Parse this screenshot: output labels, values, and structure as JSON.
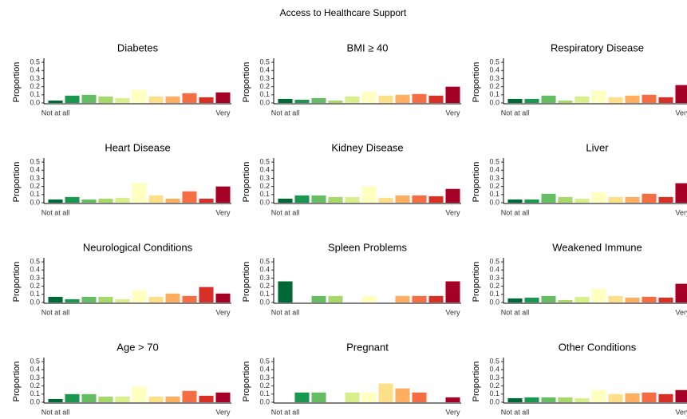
{
  "title": "Access to Healthcare Support",
  "chart_data": [
    {
      "type": "bar",
      "title": "Diabetes",
      "ylabel": "Proportion",
      "categories": [
        "Not at all",
        null,
        null,
        null,
        null,
        null,
        null,
        null,
        null,
        null,
        "Very"
      ],
      "values": [
        0.03,
        0.09,
        0.1,
        0.08,
        0.06,
        0.16,
        0.08,
        0.08,
        0.12,
        0.07,
        0.13
      ],
      "colors": [
        "#006837",
        "#1a9850",
        "#66bd63",
        "#a6d96a",
        "#d9ef8b",
        "#ffffbf",
        "#fee08b",
        "#fdae61",
        "#f46d43",
        "#d73027",
        "#a50026"
      ],
      "ylim": [
        0,
        0.55
      ],
      "yticks": [
        {
          "value": 0,
          "label": "0.0"
        },
        0.1,
        0.2,
        0.3,
        0.4,
        0.5
      ]
    },
    {
      "type": "bar",
      "title": "BMI ≥ 40",
      "ylabel": "Proportion",
      "categories": [
        "Not at all",
        null,
        null,
        null,
        null,
        null,
        null,
        null,
        null,
        null,
        "Very"
      ],
      "values": [
        0.05,
        0.04,
        0.06,
        0.03,
        0.08,
        0.14,
        0.09,
        0.1,
        0.11,
        0.09,
        0.2
      ],
      "colors": [
        "#006837",
        "#1a9850",
        "#66bd63",
        "#a6d96a",
        "#d9ef8b",
        "#ffffbf",
        "#fee08b",
        "#fdae61",
        "#f46d43",
        "#d73027",
        "#a50026"
      ],
      "ylim": [
        0,
        0.55
      ],
      "yticks": [
        {
          "value": 0,
          "label": "0.0"
        },
        0.1,
        0.2,
        0.3,
        0.4,
        0.5
      ]
    },
    {
      "type": "bar",
      "title": "Respiratory Disease",
      "ylabel": "Proportion",
      "categories": [
        "Not at all",
        null,
        null,
        null,
        null,
        null,
        null,
        null,
        null,
        null,
        "Very"
      ],
      "values": [
        0.05,
        0.05,
        0.09,
        0.03,
        0.08,
        0.15,
        0.07,
        0.09,
        0.1,
        0.07,
        0.22
      ],
      "colors": [
        "#006837",
        "#1a9850",
        "#66bd63",
        "#a6d96a",
        "#d9ef8b",
        "#ffffbf",
        "#fee08b",
        "#fdae61",
        "#f46d43",
        "#d73027",
        "#a50026"
      ],
      "ylim": [
        0,
        0.55
      ],
      "yticks": [
        {
          "value": 0,
          "label": "0.0"
        },
        0.1,
        0.2,
        0.3,
        0.4,
        0.5
      ]
    },
    {
      "type": "bar",
      "title": "Heart Disease",
      "ylabel": "Proportion",
      "categories": [
        "Not at all",
        null,
        null,
        null,
        null,
        null,
        null,
        null,
        null,
        null,
        "Very"
      ],
      "values": [
        0.04,
        0.07,
        0.04,
        0.05,
        0.06,
        0.24,
        0.09,
        0.05,
        0.14,
        0.05,
        0.2
      ],
      "colors": [
        "#006837",
        "#1a9850",
        "#66bd63",
        "#a6d96a",
        "#d9ef8b",
        "#ffffbf",
        "#fee08b",
        "#fdae61",
        "#f46d43",
        "#d73027",
        "#a50026"
      ],
      "ylim": [
        0,
        0.55
      ],
      "yticks": [
        {
          "value": 0,
          "label": "0.0"
        },
        0.1,
        0.2,
        0.3,
        0.4,
        0.5
      ]
    },
    {
      "type": "bar",
      "title": "Kidney Disease",
      "ylabel": "Proportion",
      "categories": [
        "Not at all",
        null,
        null,
        null,
        null,
        null,
        null,
        null,
        null,
        null,
        "Very"
      ],
      "values": [
        0.05,
        0.09,
        0.09,
        0.07,
        0.07,
        0.2,
        0.06,
        0.09,
        0.09,
        0.08,
        0.17
      ],
      "colors": [
        "#006837",
        "#1a9850",
        "#66bd63",
        "#a6d96a",
        "#d9ef8b",
        "#ffffbf",
        "#fee08b",
        "#fdae61",
        "#f46d43",
        "#d73027",
        "#a50026"
      ],
      "ylim": [
        0,
        0.55
      ],
      "yticks": [
        {
          "value": 0,
          "label": "0.0"
        },
        0.1,
        0.2,
        0.3,
        0.4,
        0.5
      ]
    },
    {
      "type": "bar",
      "title": "Liver",
      "ylabel": "Proportion",
      "categories": [
        "Not at all",
        null,
        null,
        null,
        null,
        null,
        null,
        null,
        null,
        null,
        "Very"
      ],
      "values": [
        0.04,
        0.04,
        0.11,
        0.07,
        0.05,
        0.13,
        0.07,
        0.07,
        0.11,
        0.07,
        0.24
      ],
      "colors": [
        "#006837",
        "#1a9850",
        "#66bd63",
        "#a6d96a",
        "#d9ef8b",
        "#ffffbf",
        "#fee08b",
        "#fdae61",
        "#f46d43",
        "#d73027",
        "#a50026"
      ],
      "ylim": [
        0,
        0.55
      ],
      "yticks": [
        {
          "value": 0,
          "label": "0.0"
        },
        0.1,
        0.2,
        0.3,
        0.4,
        0.5
      ]
    },
    {
      "type": "bar",
      "title": "Neurological Conditions",
      "ylabel": "Proportion",
      "categories": [
        "Not at all",
        null,
        null,
        null,
        null,
        null,
        null,
        null,
        null,
        null,
        "Very"
      ],
      "values": [
        0.07,
        0.04,
        0.07,
        0.07,
        0.04,
        0.15,
        0.07,
        0.11,
        0.08,
        0.19,
        0.11
      ],
      "colors": [
        "#006837",
        "#1a9850",
        "#66bd63",
        "#a6d96a",
        "#d9ef8b",
        "#ffffbf",
        "#fee08b",
        "#fdae61",
        "#f46d43",
        "#d73027",
        "#a50026"
      ],
      "ylim": [
        0,
        0.55
      ],
      "yticks": [
        {
          "value": 0,
          "label": "0.0"
        },
        0.1,
        0.2,
        0.3,
        0.4,
        0.5
      ]
    },
    {
      "type": "bar",
      "title": "Spleen Problems",
      "ylabel": "Proportion",
      "categories": [
        "Not at all",
        null,
        null,
        null,
        null,
        null,
        null,
        null,
        null,
        null,
        "Very"
      ],
      "values": [
        0.26,
        0,
        0.08,
        0.08,
        0,
        0.08,
        0,
        0.08,
        0.08,
        0.08,
        0.26
      ],
      "colors": [
        "#006837",
        "#1a9850",
        "#66bd63",
        "#a6d96a",
        "#d9ef8b",
        "#ffffbf",
        "#fee08b",
        "#fdae61",
        "#f46d43",
        "#d73027",
        "#a50026"
      ],
      "ylim": [
        0,
        0.55
      ],
      "yticks": [
        {
          "value": 0,
          "label": "0.0"
        },
        0.1,
        0.2,
        0.3,
        0.4,
        0.5
      ]
    },
    {
      "type": "bar",
      "title": "Weakened Immune",
      "ylabel": "Proportion",
      "categories": [
        "Not at all",
        null,
        null,
        null,
        null,
        null,
        null,
        null,
        null,
        null,
        "Very"
      ],
      "values": [
        0.05,
        0.06,
        0.08,
        0.03,
        0.07,
        0.17,
        0.08,
        0.06,
        0.07,
        0.06,
        0.23
      ],
      "colors": [
        "#006837",
        "#1a9850",
        "#66bd63",
        "#a6d96a",
        "#d9ef8b",
        "#ffffbf",
        "#fee08b",
        "#fdae61",
        "#f46d43",
        "#d73027",
        "#a50026"
      ],
      "ylim": [
        0,
        0.55
      ],
      "yticks": [
        {
          "value": 0,
          "label": "0.0"
        },
        0.1,
        0.2,
        0.3,
        0.4,
        0.5
      ]
    },
    {
      "type": "bar",
      "title": "Age > 70",
      "ylabel": "Proportion",
      "categories": [
        "Not at all",
        null,
        null,
        null,
        null,
        null,
        null,
        null,
        null,
        null,
        "Very"
      ],
      "values": [
        0.04,
        0.1,
        0.1,
        0.07,
        0.07,
        0.19,
        0.07,
        0.07,
        0.14,
        0.08,
        0.12
      ],
      "colors": [
        "#006837",
        "#1a9850",
        "#66bd63",
        "#a6d96a",
        "#d9ef8b",
        "#ffffbf",
        "#fee08b",
        "#fdae61",
        "#f46d43",
        "#d73027",
        "#a50026"
      ],
      "ylim": [
        0,
        0.55
      ],
      "yticks": [
        {
          "value": 0,
          "label": "0.0"
        },
        0.1,
        0.2,
        0.3,
        0.4,
        0.5
      ]
    },
    {
      "type": "bar",
      "title": "Pregnant",
      "ylabel": "Proportion",
      "categories": [
        "Not at all",
        null,
        null,
        null,
        null,
        null,
        null,
        null,
        null,
        null,
        "Very"
      ],
      "values": [
        0,
        0.12,
        0.12,
        0,
        0.12,
        0.12,
        0.23,
        0.17,
        0.12,
        0,
        0.06
      ],
      "colors": [
        "#006837",
        "#1a9850",
        "#66bd63",
        "#a6d96a",
        "#d9ef8b",
        "#ffffbf",
        "#fee08b",
        "#fdae61",
        "#f46d43",
        "#d73027",
        "#a50026"
      ],
      "ylim": [
        0,
        0.55
      ],
      "yticks": [
        {
          "value": 0,
          "label": "0.0"
        },
        0.1,
        0.2,
        0.3,
        0.4,
        0.5
      ]
    },
    {
      "type": "bar",
      "title": "Other Conditions",
      "ylabel": "Proportion",
      "categories": [
        "Not at all",
        null,
        null,
        null,
        null,
        null,
        null,
        null,
        null,
        null,
        "Very"
      ],
      "values": [
        0.05,
        0.06,
        0.06,
        0.06,
        0.05,
        0.15,
        0.1,
        0.11,
        0.12,
        0.1,
        0.15
      ],
      "colors": [
        "#006837",
        "#1a9850",
        "#66bd63",
        "#a6d96a",
        "#d9ef8b",
        "#ffffbf",
        "#fee08b",
        "#fdae61",
        "#f46d43",
        "#d73027",
        "#a50026"
      ],
      "ylim": [
        0,
        0.55
      ],
      "yticks": [
        {
          "value": 0,
          "label": "0.0"
        },
        0.1,
        0.2,
        0.3,
        0.4,
        0.5
      ]
    }
  ]
}
